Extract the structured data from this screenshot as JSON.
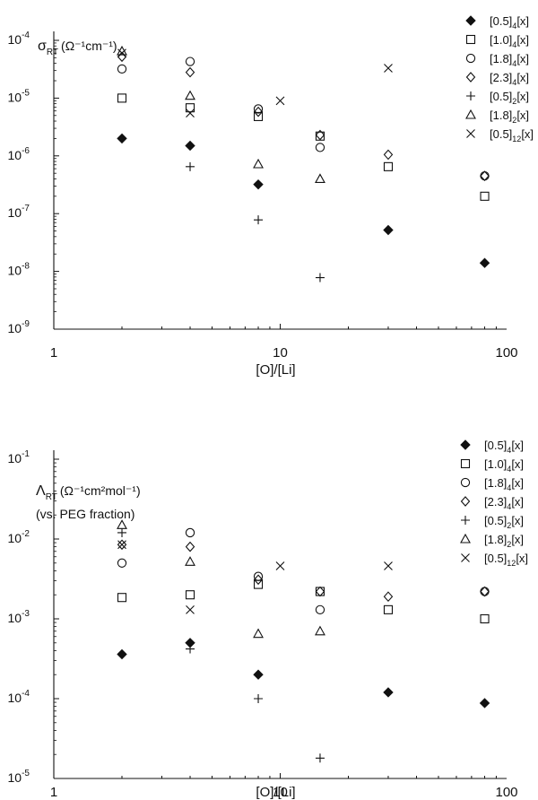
{
  "chart_data": [
    {
      "type": "scatter",
      "ylabel_main": "σ",
      "ylabel_sub": "RT",
      "ylabel_units": "(Ω⁻¹cm⁻¹)",
      "ylabel_note": "",
      "xlabel": "[O]/[Li]",
      "xscale": "log",
      "yscale": "log",
      "xlim": [
        1,
        100
      ],
      "ylim": [
        1e-09,
        0.0001
      ],
      "xticks": [
        {
          "value": 1,
          "label": "1"
        },
        {
          "value": 10,
          "label": "10"
        },
        {
          "value": 100,
          "label": "100"
        }
      ],
      "yticks": [
        {
          "value": 1e-09,
          "base": "10",
          "exp": "-9"
        },
        {
          "value": 1e-08,
          "base": "10",
          "exp": "-8"
        },
        {
          "value": 1e-07,
          "base": "10",
          "exp": "-7"
        },
        {
          "value": 1e-06,
          "base": "10",
          "exp": "-6"
        },
        {
          "value": 1e-05,
          "base": "10",
          "exp": "-5"
        },
        {
          "value": 0.0001,
          "base": "10",
          "exp": "-4"
        }
      ],
      "legend_position": "top-right",
      "series": [
        {
          "name": "[0.5]4[x]",
          "label_main": "[0.5]",
          "label_sub": "4",
          "label_tail": "[x]",
          "marker": "diamond-filled",
          "x": [
            2,
            4,
            8,
            30,
            80
          ],
          "y": [
            2e-06,
            1.5e-06,
            3.2e-07,
            5.2e-08,
            1.4e-08
          ]
        },
        {
          "name": "[1.0]4[x]",
          "label_main": "[1.0]",
          "label_sub": "4",
          "label_tail": "[x]",
          "marker": "square-open",
          "x": [
            2,
            4,
            8,
            15,
            30,
            80
          ],
          "y": [
            1e-05,
            6.8e-06,
            4.8e-06,
            2.2e-06,
            6.5e-07,
            2e-07
          ]
        },
        {
          "name": "[1.8]4[x]",
          "label_main": "[1.8]",
          "label_sub": "4",
          "label_tail": "[x]",
          "marker": "circle-open",
          "x": [
            2,
            4,
            8,
            15,
            80
          ],
          "y": [
            3.2e-05,
            4.3e-05,
            6.5e-06,
            1.4e-06,
            4.5e-07
          ]
        },
        {
          "name": "[2.3]4[x]",
          "label_main": "[2.3]",
          "label_sub": "4",
          "label_tail": "[x]",
          "marker": "diamond-open",
          "x": [
            2,
            4,
            8,
            15,
            30,
            80
          ],
          "y": [
            5.2e-05,
            2.8e-05,
            5.8e-06,
            2.3e-06,
            1.05e-06,
            4.5e-07
          ]
        },
        {
          "name": "[0.5]2[x]",
          "label_main": "[0.5]",
          "label_sub": "2",
          "label_tail": "[x]",
          "marker": "plus",
          "x": [
            4,
            8,
            15
          ],
          "y": [
            6.5e-07,
            7.8e-08,
            7.8e-09
          ]
        },
        {
          "name": "[1.8]2[x]",
          "label_main": "[1.8]",
          "label_sub": "2",
          "label_tail": "[x]",
          "marker": "triangle-open",
          "x": [
            2,
            4,
            8,
            15
          ],
          "y": [
            6.5e-05,
            1.1e-05,
            7.2e-07,
            4e-07
          ]
        },
        {
          "name": "[0.5]12[x]",
          "label_main": "[0.5]",
          "label_sub": "12",
          "label_tail": "[x]",
          "marker": "cross",
          "x": [
            2,
            4,
            10,
            30
          ],
          "y": [
            6e-05,
            5.5e-06,
            9e-06,
            3.3e-05
          ]
        }
      ]
    },
    {
      "type": "scatter",
      "ylabel_main": "Λ",
      "ylabel_sub": "RT",
      "ylabel_units": "(Ω⁻¹cm²mol⁻¹)",
      "ylabel_note": "(vs. PEG fraction)",
      "xlabel": "[O]/[Li]",
      "xscale": "log",
      "yscale": "log",
      "xlim": [
        1,
        100
      ],
      "ylim": [
        1e-05,
        0.1
      ],
      "xticks": [
        {
          "value": 1,
          "label": "1"
        },
        {
          "value": 10,
          "label": "10"
        },
        {
          "value": 100,
          "label": "100"
        }
      ],
      "yticks": [
        {
          "value": 1e-05,
          "base": "10",
          "exp": "-5"
        },
        {
          "value": 0.0001,
          "base": "10",
          "exp": "-4"
        },
        {
          "value": 0.001,
          "base": "10",
          "exp": "-3"
        },
        {
          "value": 0.01,
          "base": "10",
          "exp": "-2"
        },
        {
          "value": 0.1,
          "base": "10",
          "exp": "-1"
        }
      ],
      "legend_position": "top-right",
      "series": [
        {
          "name": "[0.5]4[x]",
          "label_main": "[0.5]",
          "label_sub": "4",
          "label_tail": "[x]",
          "marker": "diamond-filled",
          "x": [
            2,
            4,
            8,
            30,
            80
          ],
          "y": [
            0.00036,
            0.0005,
            0.0002,
            0.00012,
            8.8e-05
          ]
        },
        {
          "name": "[1.0]4[x]",
          "label_main": "[1.0]",
          "label_sub": "4",
          "label_tail": "[x]",
          "marker": "square-open",
          "x": [
            2,
            4,
            8,
            15,
            30,
            80
          ],
          "y": [
            0.00185,
            0.002,
            0.0027,
            0.0022,
            0.0013,
            0.001
          ]
        },
        {
          "name": "[1.8]4[x]",
          "label_main": "[1.8]",
          "label_sub": "4",
          "label_tail": "[x]",
          "marker": "circle-open",
          "x": [
            2,
            4,
            8,
            15,
            80
          ],
          "y": [
            0.005,
            0.012,
            0.0034,
            0.0013,
            0.0022
          ]
        },
        {
          "name": "[2.3]4[x]",
          "label_main": "[2.3]",
          "label_sub": "4",
          "label_tail": "[x]",
          "marker": "diamond-open",
          "x": [
            2,
            4,
            8,
            15,
            30,
            80
          ],
          "y": [
            0.0085,
            0.008,
            0.0031,
            0.0022,
            0.0019,
            0.0022
          ]
        },
        {
          "name": "[0.5]2[x]",
          "label_main": "[0.5]",
          "label_sub": "2",
          "label_tail": "[x]",
          "marker": "plus",
          "x": [
            2,
            4,
            8,
            15
          ],
          "y": [
            0.012,
            0.00042,
            0.0001,
            1.8e-05
          ]
        },
        {
          "name": "[1.8]2[x]",
          "label_main": "[1.8]",
          "label_sub": "2",
          "label_tail": "[x]",
          "marker": "triangle-open",
          "x": [
            2,
            4,
            8,
            15
          ],
          "y": [
            0.015,
            0.0052,
            0.00065,
            0.0007
          ]
        },
        {
          "name": "[0.5]12[x]",
          "label_main": "[0.5]",
          "label_sub": "12",
          "label_tail": "[x]",
          "marker": "cross",
          "x": [
            2,
            4,
            10,
            30
          ],
          "y": [
            0.0085,
            0.0013,
            0.0046,
            0.0046
          ]
        }
      ]
    }
  ]
}
